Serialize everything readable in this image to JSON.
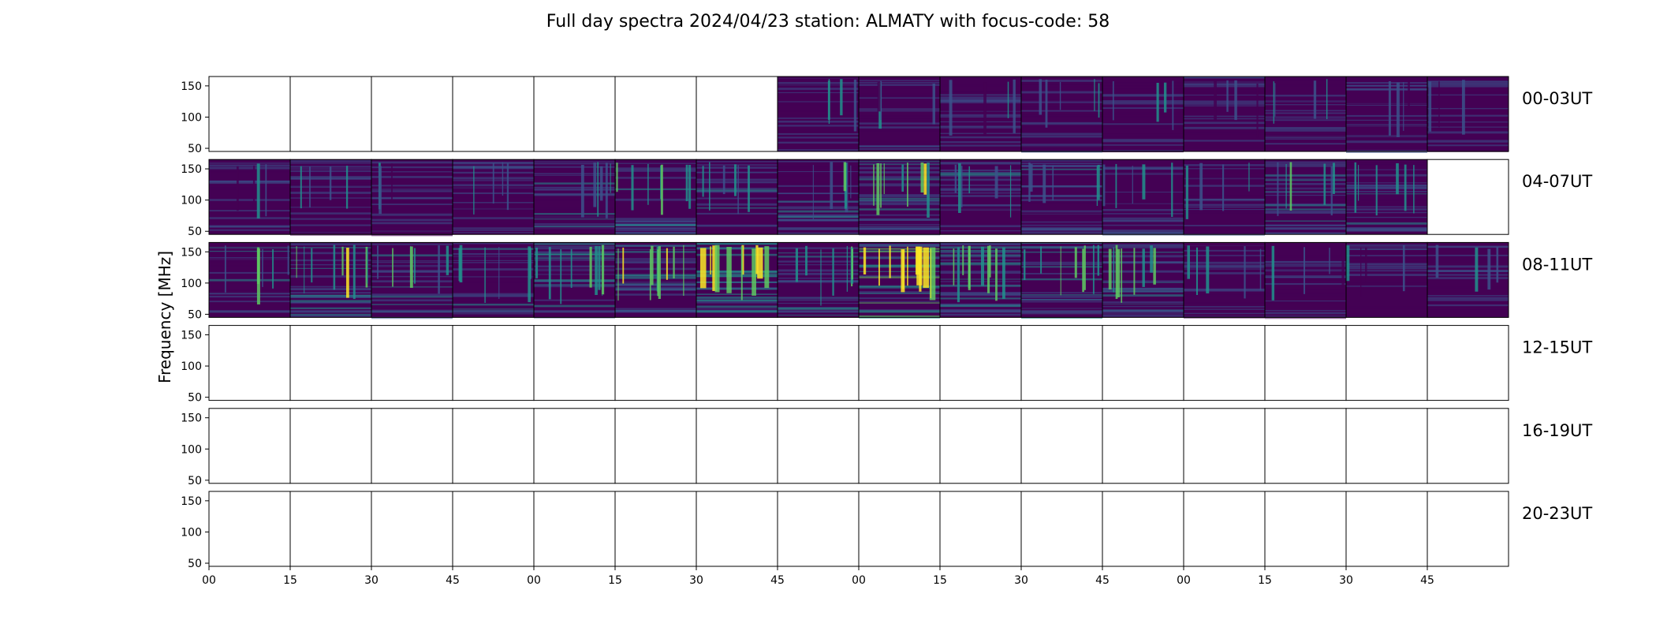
{
  "chart_data": {
    "type": "heatmap",
    "title": "Full day spectra 2024/04/23 station: ALMATY with focus-code: 58",
    "xlabel": "",
    "ylabel": "Frequency [MHz]",
    "ylim": [
      45,
      165
    ],
    "yticks": [
      50,
      100,
      150
    ],
    "x_tick_labels": [
      "00",
      "15",
      "30",
      "45",
      "00",
      "15",
      "30",
      "45",
      "00",
      "15",
      "30",
      "45",
      "00",
      "15",
      "30",
      "45"
    ],
    "colormap": "viridis",
    "panels_per_row": 16,
    "rows": [
      {
        "label": "00-03UT",
        "panel_data": [
          0,
          0,
          0,
          0,
          0,
          0,
          0,
          1,
          1,
          1,
          1,
          1,
          1,
          1,
          1,
          1
        ],
        "intensity": [
          0,
          0,
          0,
          0,
          0,
          0,
          0,
          0.25,
          0.22,
          0.25,
          0.3,
          0.25,
          0.22,
          0.28,
          0.25,
          0.2
        ]
      },
      {
        "label": "04-07UT",
        "panel_data": [
          1,
          1,
          1,
          1,
          1,
          1,
          1,
          1,
          1,
          1,
          1,
          1,
          1,
          1,
          1,
          0
        ],
        "intensity": [
          0.25,
          0.22,
          0.2,
          0.25,
          0.35,
          0.45,
          0.35,
          0.4,
          0.55,
          0.35,
          0.4,
          0.3,
          0.25,
          0.4,
          0.4,
          0
        ]
      },
      {
        "label": "08-11UT",
        "panel_data": [
          1,
          1,
          1,
          1,
          1,
          1,
          1,
          1,
          1,
          1,
          1,
          1,
          1,
          1,
          1,
          1
        ],
        "intensity": [
          0.4,
          0.55,
          0.45,
          0.4,
          0.55,
          0.6,
          0.7,
          0.5,
          0.75,
          0.6,
          0.5,
          0.55,
          0.3,
          0.25,
          0.25,
          0.25
        ]
      },
      {
        "label": "12-15UT",
        "panel_data": [
          0,
          0,
          0,
          0,
          0,
          0,
          0,
          0,
          0,
          0,
          0,
          0,
          0,
          0,
          0,
          0
        ],
        "intensity": [
          0,
          0,
          0,
          0,
          0,
          0,
          0,
          0,
          0,
          0,
          0,
          0,
          0,
          0,
          0,
          0
        ]
      },
      {
        "label": "16-19UT",
        "panel_data": [
          0,
          0,
          0,
          0,
          0,
          0,
          0,
          0,
          0,
          0,
          0,
          0,
          0,
          0,
          0,
          0
        ],
        "intensity": [
          0,
          0,
          0,
          0,
          0,
          0,
          0,
          0,
          0,
          0,
          0,
          0,
          0,
          0,
          0,
          0
        ]
      },
      {
        "label": "20-23UT",
        "panel_data": [
          0,
          0,
          0,
          0,
          0,
          0,
          0,
          0,
          0,
          0,
          0,
          0,
          0,
          0,
          0,
          0
        ],
        "intensity": [
          0,
          0,
          0,
          0,
          0,
          0,
          0,
          0,
          0,
          0,
          0,
          0,
          0,
          0,
          0,
          0
        ]
      }
    ],
    "colors": {
      "low": "#440154",
      "mid_low": "#3b528b",
      "mid": "#21918c",
      "mid_high": "#5ec962",
      "high": "#fde725"
    },
    "grid": false
  }
}
